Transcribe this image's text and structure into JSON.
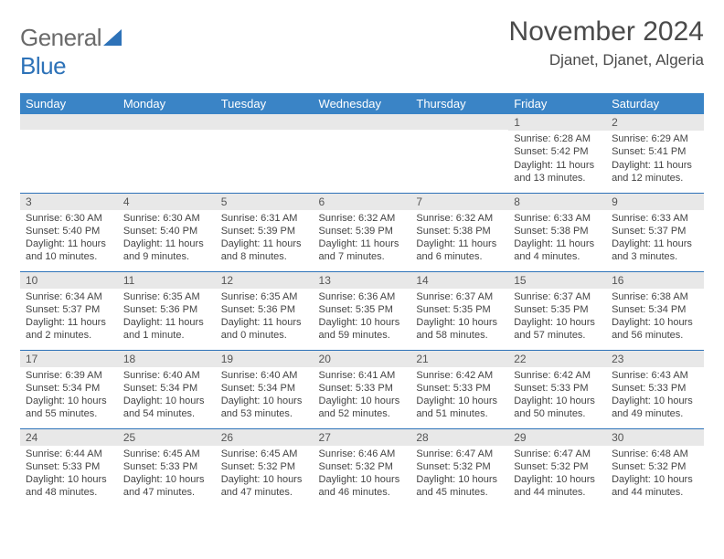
{
  "logo": {
    "gray": "General",
    "blue": "Blue"
  },
  "title": "November 2024",
  "location": "Djanet, Djanet, Algeria",
  "colors": {
    "header_bg": "#3a84c6",
    "header_text": "#ffffff",
    "daynum_bg": "#e8e8e8",
    "row_border": "#2d72b8",
    "text": "#444444",
    "logo_gray": "#6a6a6a",
    "logo_blue": "#2d72b8"
  },
  "typography": {
    "title_fontsize": 30,
    "location_fontsize": 17,
    "header_fontsize": 13,
    "daynum_fontsize": 12,
    "body_fontsize": 11
  },
  "weekdays": [
    "Sunday",
    "Monday",
    "Tuesday",
    "Wednesday",
    "Thursday",
    "Friday",
    "Saturday"
  ],
  "weeks": [
    [
      {
        "n": "",
        "sr": "",
        "ss": "",
        "dl": ""
      },
      {
        "n": "",
        "sr": "",
        "ss": "",
        "dl": ""
      },
      {
        "n": "",
        "sr": "",
        "ss": "",
        "dl": ""
      },
      {
        "n": "",
        "sr": "",
        "ss": "",
        "dl": ""
      },
      {
        "n": "",
        "sr": "",
        "ss": "",
        "dl": ""
      },
      {
        "n": "1",
        "sr": "Sunrise: 6:28 AM",
        "ss": "Sunset: 5:42 PM",
        "dl": "Daylight: 11 hours and 13 minutes."
      },
      {
        "n": "2",
        "sr": "Sunrise: 6:29 AM",
        "ss": "Sunset: 5:41 PM",
        "dl": "Daylight: 11 hours and 12 minutes."
      }
    ],
    [
      {
        "n": "3",
        "sr": "Sunrise: 6:30 AM",
        "ss": "Sunset: 5:40 PM",
        "dl": "Daylight: 11 hours and 10 minutes."
      },
      {
        "n": "4",
        "sr": "Sunrise: 6:30 AM",
        "ss": "Sunset: 5:40 PM",
        "dl": "Daylight: 11 hours and 9 minutes."
      },
      {
        "n": "5",
        "sr": "Sunrise: 6:31 AM",
        "ss": "Sunset: 5:39 PM",
        "dl": "Daylight: 11 hours and 8 minutes."
      },
      {
        "n": "6",
        "sr": "Sunrise: 6:32 AM",
        "ss": "Sunset: 5:39 PM",
        "dl": "Daylight: 11 hours and 7 minutes."
      },
      {
        "n": "7",
        "sr": "Sunrise: 6:32 AM",
        "ss": "Sunset: 5:38 PM",
        "dl": "Daylight: 11 hours and 6 minutes."
      },
      {
        "n": "8",
        "sr": "Sunrise: 6:33 AM",
        "ss": "Sunset: 5:38 PM",
        "dl": "Daylight: 11 hours and 4 minutes."
      },
      {
        "n": "9",
        "sr": "Sunrise: 6:33 AM",
        "ss": "Sunset: 5:37 PM",
        "dl": "Daylight: 11 hours and 3 minutes."
      }
    ],
    [
      {
        "n": "10",
        "sr": "Sunrise: 6:34 AM",
        "ss": "Sunset: 5:37 PM",
        "dl": "Daylight: 11 hours and 2 minutes."
      },
      {
        "n": "11",
        "sr": "Sunrise: 6:35 AM",
        "ss": "Sunset: 5:36 PM",
        "dl": "Daylight: 11 hours and 1 minute."
      },
      {
        "n": "12",
        "sr": "Sunrise: 6:35 AM",
        "ss": "Sunset: 5:36 PM",
        "dl": "Daylight: 11 hours and 0 minutes."
      },
      {
        "n": "13",
        "sr": "Sunrise: 6:36 AM",
        "ss": "Sunset: 5:35 PM",
        "dl": "Daylight: 10 hours and 59 minutes."
      },
      {
        "n": "14",
        "sr": "Sunrise: 6:37 AM",
        "ss": "Sunset: 5:35 PM",
        "dl": "Daylight: 10 hours and 58 minutes."
      },
      {
        "n": "15",
        "sr": "Sunrise: 6:37 AM",
        "ss": "Sunset: 5:35 PM",
        "dl": "Daylight: 10 hours and 57 minutes."
      },
      {
        "n": "16",
        "sr": "Sunrise: 6:38 AM",
        "ss": "Sunset: 5:34 PM",
        "dl": "Daylight: 10 hours and 56 minutes."
      }
    ],
    [
      {
        "n": "17",
        "sr": "Sunrise: 6:39 AM",
        "ss": "Sunset: 5:34 PM",
        "dl": "Daylight: 10 hours and 55 minutes."
      },
      {
        "n": "18",
        "sr": "Sunrise: 6:40 AM",
        "ss": "Sunset: 5:34 PM",
        "dl": "Daylight: 10 hours and 54 minutes."
      },
      {
        "n": "19",
        "sr": "Sunrise: 6:40 AM",
        "ss": "Sunset: 5:34 PM",
        "dl": "Daylight: 10 hours and 53 minutes."
      },
      {
        "n": "20",
        "sr": "Sunrise: 6:41 AM",
        "ss": "Sunset: 5:33 PM",
        "dl": "Daylight: 10 hours and 52 minutes."
      },
      {
        "n": "21",
        "sr": "Sunrise: 6:42 AM",
        "ss": "Sunset: 5:33 PM",
        "dl": "Daylight: 10 hours and 51 minutes."
      },
      {
        "n": "22",
        "sr": "Sunrise: 6:42 AM",
        "ss": "Sunset: 5:33 PM",
        "dl": "Daylight: 10 hours and 50 minutes."
      },
      {
        "n": "23",
        "sr": "Sunrise: 6:43 AM",
        "ss": "Sunset: 5:33 PM",
        "dl": "Daylight: 10 hours and 49 minutes."
      }
    ],
    [
      {
        "n": "24",
        "sr": "Sunrise: 6:44 AM",
        "ss": "Sunset: 5:33 PM",
        "dl": "Daylight: 10 hours and 48 minutes."
      },
      {
        "n": "25",
        "sr": "Sunrise: 6:45 AM",
        "ss": "Sunset: 5:33 PM",
        "dl": "Daylight: 10 hours and 47 minutes."
      },
      {
        "n": "26",
        "sr": "Sunrise: 6:45 AM",
        "ss": "Sunset: 5:32 PM",
        "dl": "Daylight: 10 hours and 47 minutes."
      },
      {
        "n": "27",
        "sr": "Sunrise: 6:46 AM",
        "ss": "Sunset: 5:32 PM",
        "dl": "Daylight: 10 hours and 46 minutes."
      },
      {
        "n": "28",
        "sr": "Sunrise: 6:47 AM",
        "ss": "Sunset: 5:32 PM",
        "dl": "Daylight: 10 hours and 45 minutes."
      },
      {
        "n": "29",
        "sr": "Sunrise: 6:47 AM",
        "ss": "Sunset: 5:32 PM",
        "dl": "Daylight: 10 hours and 44 minutes."
      },
      {
        "n": "30",
        "sr": "Sunrise: 6:48 AM",
        "ss": "Sunset: 5:32 PM",
        "dl": "Daylight: 10 hours and 44 minutes."
      }
    ]
  ]
}
